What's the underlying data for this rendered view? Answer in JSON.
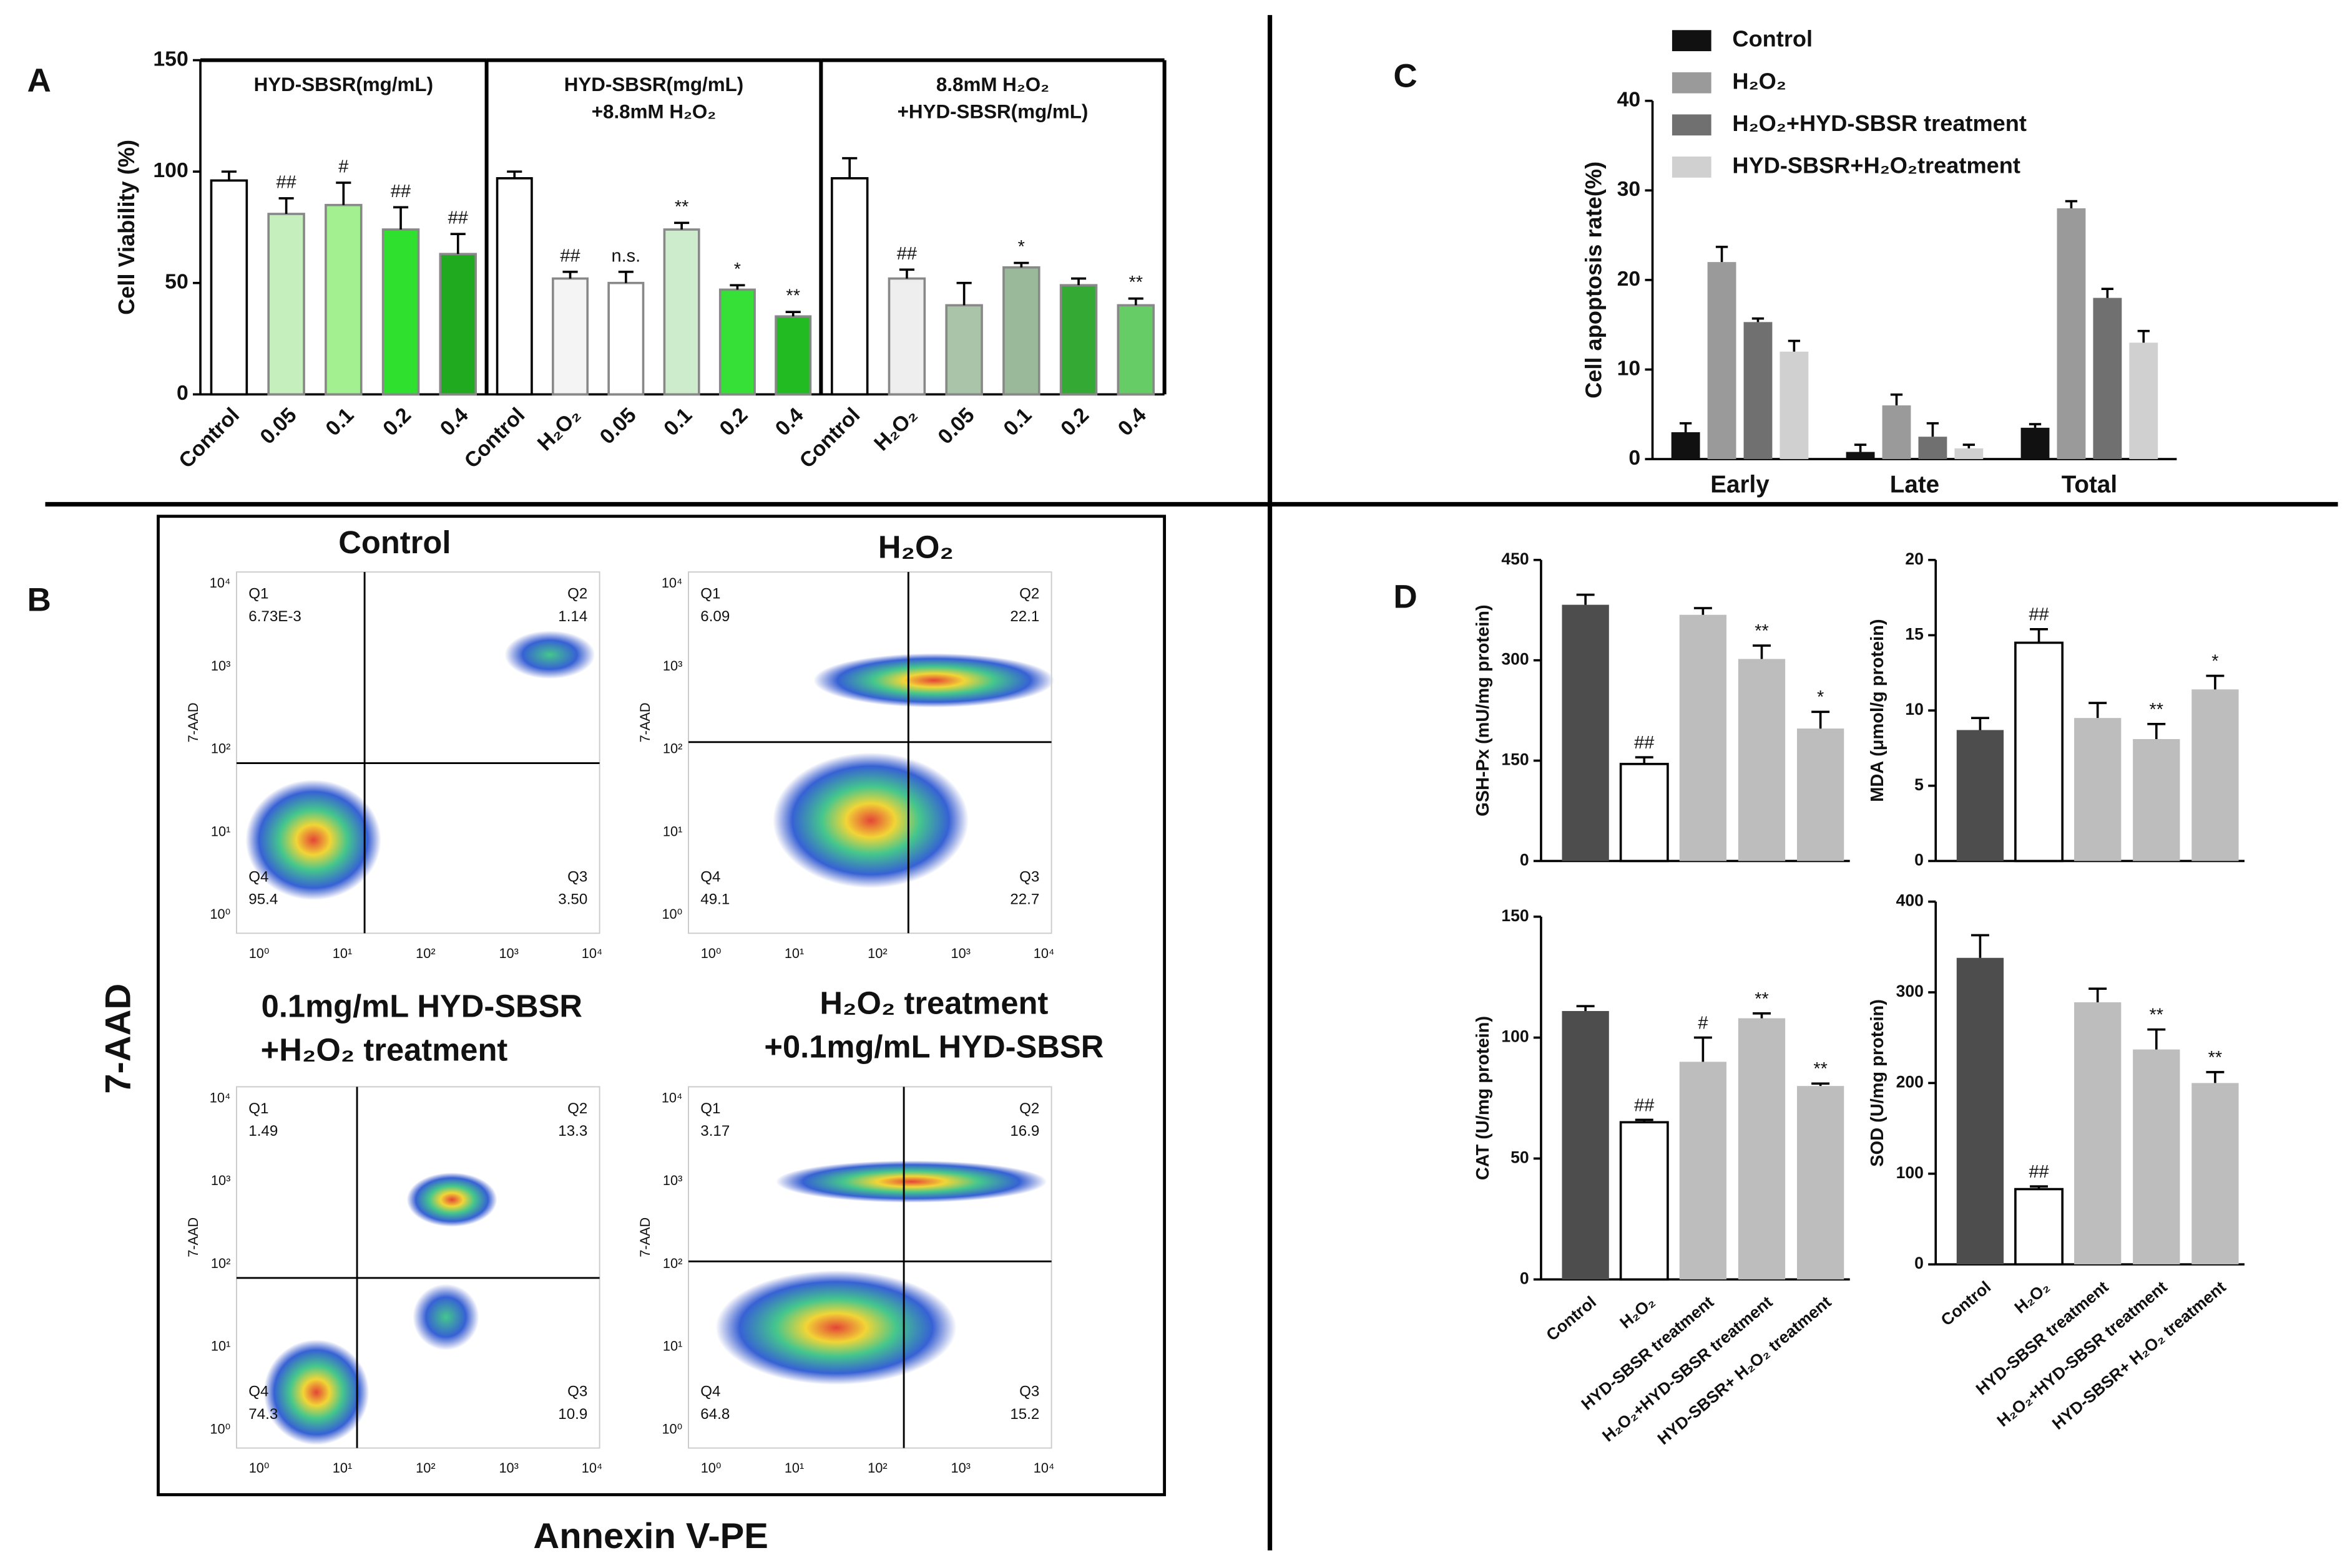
{
  "panel_labels": [
    "A",
    "B",
    "C",
    "D"
  ],
  "chart_data": [
    {
      "type": "bar",
      "ylabel": "Cell Viability (%)",
      "ylim": [
        0,
        150
      ],
      "yticks": [
        0,
        50,
        100,
        150
      ],
      "groups": [
        {
          "title": [
            "HYD-SBSR(mg/mL)"
          ],
          "categories": [
            "Control",
            "0.05",
            "0.1",
            "0.2",
            "0.4"
          ],
          "values": [
            96,
            81,
            85,
            74,
            63
          ],
          "errors": [
            4,
            7,
            10,
            10,
            9
          ],
          "annotations": [
            null,
            "##",
            "#",
            "##",
            "##"
          ],
          "colors": [
            "#ffffff",
            "#c6efbe",
            "#a2f08f",
            "#2fe02f",
            "#1faa1f"
          ]
        },
        {
          "title": [
            "HYD-SBSR(mg/mL)",
            "+8.8mM H₂O₂"
          ],
          "categories": [
            "Control",
            "H₂O₂",
            "0.05",
            "0.1",
            "0.2",
            "0.4"
          ],
          "values": [
            97,
            52,
            50,
            74,
            47,
            35
          ],
          "errors": [
            3,
            3,
            5,
            3,
            2,
            2
          ],
          "annotations": [
            null,
            "##",
            "n.s.",
            "**",
            "*",
            "**"
          ],
          "colors": [
            "#ffffff",
            "#f4f4f4",
            "#ffffff",
            "#cdeccb",
            "#36e036",
            "#22bb22"
          ]
        },
        {
          "title": [
            "8.8mM H₂O₂",
            "+HYD-SBSR(mg/mL)"
          ],
          "categories": [
            "Control",
            "H₂O₂",
            "0.05",
            "0.1",
            "0.2",
            "0.4"
          ],
          "values": [
            97,
            52,
            40,
            57,
            49,
            40
          ],
          "errors": [
            9,
            4,
            10,
            2,
            3,
            3
          ],
          "annotations": [
            null,
            "##",
            null,
            "*",
            null,
            "**"
          ],
          "colors": [
            "#ffffff",
            "#eeeeee",
            "#a9c4a9",
            "#9ab89a",
            "#34aa34",
            "#66cc66"
          ]
        }
      ]
    },
    {
      "type": "grouped_bar",
      "ylabel": "Cell apoptosis rate(%)",
      "ylim": [
        0,
        40
      ],
      "yticks": [
        0,
        10,
        20,
        30,
        40
      ],
      "categories": [
        "Early",
        "Late",
        "Total"
      ],
      "legend": "top-left",
      "series": [
        {
          "name": "Control",
          "color": "#111111",
          "values": [
            3,
            0.8,
            3.5
          ],
          "errors": [
            1,
            0.8,
            0.4
          ]
        },
        {
          "name": "H₂O₂",
          "color": "#9a9a9a",
          "values": [
            22,
            6,
            28
          ],
          "errors": [
            1.7,
            1.2,
            0.8
          ]
        },
        {
          "name": "H₂O₂+HYD-SBSR treatment",
          "color": "#707070",
          "values": [
            15.3,
            2.5,
            18
          ],
          "errors": [
            0.4,
            1.5,
            1
          ]
        },
        {
          "name": "HYD-SBSR+H₂O₂treatment",
          "color": "#d0d0d0",
          "values": [
            12,
            1.2,
            13
          ],
          "errors": [
            1.2,
            0.4,
            1.3
          ]
        }
      ]
    },
    {
      "type": "bar",
      "ylabel": "GSH-Px (mU/mg protein)",
      "ylim": [
        0,
        450
      ],
      "yticks": [
        0,
        150,
        300,
        450
      ],
      "values": [
        383,
        145,
        368,
        302,
        198
      ],
      "errors": [
        15,
        10,
        10,
        20,
        25
      ],
      "annotations": [
        null,
        "##",
        null,
        "**",
        "*"
      ],
      "colors": [
        "#4d4d4d",
        "#ffffff",
        "#bdbdbd",
        "#bdbdbd",
        "#bdbdbd"
      ]
    },
    {
      "type": "bar",
      "ylabel": "MDA (μmol/g protein)",
      "ylim": [
        0,
        20
      ],
      "yticks": [
        0,
        5,
        10,
        15,
        20
      ],
      "values": [
        8.7,
        14.5,
        9.5,
        8.1,
        11.4
      ],
      "errors": [
        0.8,
        0.9,
        1,
        1,
        0.9
      ],
      "annotations": [
        null,
        "##",
        null,
        "**",
        "*"
      ],
      "colors": [
        "#4d4d4d",
        "#ffffff",
        "#bdbdbd",
        "#bdbdbd",
        "#bdbdbd"
      ]
    },
    {
      "type": "bar",
      "ylabel": "CAT (U/mg protein)",
      "ylim": [
        0,
        150
      ],
      "yticks": [
        0,
        50,
        100,
        150
      ],
      "categories": [
        "Control",
        "H₂O₂",
        "HYD-SBSR treatment",
        "H₂O₂+HYD-SBSR treatment",
        "HYD-SBSR+ H₂O₂ treatment"
      ],
      "values": [
        111,
        65,
        90,
        108,
        80
      ],
      "errors": [
        2,
        1,
        10,
        2,
        1
      ],
      "annotations": [
        null,
        "##",
        "#",
        "**",
        "**"
      ],
      "colors": [
        "#4d4d4d",
        "#ffffff",
        "#bdbdbd",
        "#bdbdbd",
        "#bdbdbd"
      ]
    },
    {
      "type": "bar",
      "ylabel": "SOD (U/mg protein)",
      "ylim": [
        0,
        400
      ],
      "yticks": [
        0,
        100,
        200,
        300,
        400
      ],
      "categories": [
        "Control",
        "H₂O₂",
        "HYD-SBSR treatment",
        "H₂O₂+HYD-SBSR treatment",
        "HYD-SBSR+ H₂O₂ treatment"
      ],
      "values": [
        338,
        83,
        289,
        237,
        200
      ],
      "errors": [
        25,
        3,
        15,
        22,
        12
      ],
      "annotations": [
        null,
        "##",
        null,
        "**",
        "**"
      ],
      "colors": [
        "#4d4d4d",
        "#ffffff",
        "#bdbdbd",
        "#bdbdbd",
        "#bdbdbd"
      ]
    }
  ],
  "flow_cytometry": {
    "y_label": "7-AAD",
    "x_label": "Annexin V-PE",
    "plot_axis_label": "7-AAD",
    "tick_labels": [
      "10⁰",
      "10¹",
      "10²",
      "10³",
      "10⁴"
    ],
    "plots": [
      {
        "title": [
          "Control"
        ],
        "quadrants": [
          {
            "name": "Q1",
            "value": "6.73E-3"
          },
          {
            "name": "Q2",
            "value": "1.14"
          },
          {
            "name": "Q3",
            "value": "3.50"
          },
          {
            "name": "Q4",
            "value": "95.4"
          }
        ]
      },
      {
        "title": [
          "H₂O₂"
        ],
        "quadrants": [
          {
            "name": "Q1",
            "value": "6.09"
          },
          {
            "name": "Q2",
            "value": "22.1"
          },
          {
            "name": "Q3",
            "value": "22.7"
          },
          {
            "name": "Q4",
            "value": "49.1"
          }
        ]
      },
      {
        "title": [
          "0.1mg/mL HYD-SBSR",
          "+H₂O₂ treatment"
        ],
        "quadrants": [
          {
            "name": "Q1",
            "value": "1.49"
          },
          {
            "name": "Q2",
            "value": "13.3"
          },
          {
            "name": "Q3",
            "value": "10.9"
          },
          {
            "name": "Q4",
            "value": "74.3"
          }
        ]
      },
      {
        "title": [
          "H₂O₂ treatment",
          "+0.1mg/mL HYD-SBSR"
        ],
        "quadrants": [
          {
            "name": "Q1",
            "value": "3.17"
          },
          {
            "name": "Q2",
            "value": "16.9"
          },
          {
            "name": "Q3",
            "value": "15.2"
          },
          {
            "name": "Q4",
            "value": "64.8"
          }
        ]
      }
    ]
  }
}
